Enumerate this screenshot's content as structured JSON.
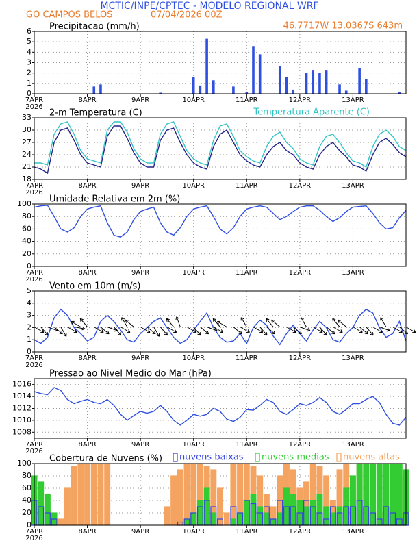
{
  "header": {
    "title": "MCTIC/INPE/CPTEC - MODELO REGIONAL WRF",
    "location": "GO CAMPOS BELOS",
    "datetime": "07/04/2026 00Z",
    "coords": "46.7717W 13.0367S 643m"
  },
  "chart_data": [
    {
      "type": "bar",
      "title": "Precipitacao (mm/h)",
      "color": "#2f4fe0",
      "grid": true,
      "x": [
        0,
        3,
        6,
        9,
        12,
        15,
        18,
        21,
        24,
        27,
        30,
        33,
        36,
        39,
        42,
        45,
        48,
        51,
        54,
        57,
        60,
        63,
        66,
        69,
        72,
        75,
        78,
        81,
        84,
        87,
        90,
        93,
        96,
        99,
        102,
        105,
        108,
        111,
        114,
        117,
        120,
        123,
        126,
        129,
        132,
        135,
        138,
        141,
        144,
        147,
        150,
        153,
        156,
        159,
        162,
        165,
        168
      ],
      "values": [
        0,
        0,
        0,
        0,
        0,
        0,
        0,
        0,
        0,
        0.7,
        0.9,
        0,
        0,
        0,
        0,
        0,
        0,
        0,
        0,
        0.1,
        0,
        0,
        0,
        0,
        1.6,
        0.8,
        5.3,
        1.3,
        0,
        0,
        0.7,
        0,
        0.2,
        4.6,
        3.8,
        0,
        0,
        2.7,
        1.6,
        0.4,
        0,
        2,
        2.3,
        2,
        2.3,
        0,
        0.9,
        0.3,
        0,
        2.5,
        1.4,
        0,
        0,
        0,
        0,
        0.2,
        0
      ],
      "xlim": [
        0,
        168
      ],
      "xticks": [
        {
          "value": 0,
          "label": "7APR"
        },
        {
          "value": 24,
          "label": "8APR"
        },
        {
          "value": 48,
          "label": "9APR"
        },
        {
          "value": 72,
          "label": "10APR"
        },
        {
          "value": 96,
          "label": "11APR"
        },
        {
          "value": 120,
          "label": "12APR"
        },
        {
          "value": 144,
          "label": "13APR"
        }
      ],
      "year": "2026",
      "ylim": [
        0,
        6
      ],
      "yticks": [
        0,
        1,
        2,
        3,
        4,
        5,
        6
      ]
    },
    {
      "type": "line",
      "grid": true,
      "x": [
        0,
        3,
        6,
        9,
        12,
        15,
        18,
        21,
        24,
        27,
        30,
        33,
        36,
        39,
        42,
        45,
        48,
        51,
        54,
        57,
        60,
        63,
        66,
        69,
        72,
        75,
        78,
        81,
        84,
        87,
        90,
        93,
        96,
        99,
        102,
        105,
        108,
        111,
        114,
        117,
        120,
        123,
        126,
        129,
        132,
        135,
        138,
        141,
        144,
        147,
        150,
        153,
        156,
        159,
        162,
        165,
        168
      ],
      "series": [
        {
          "name": "2-m Temperatura (C)",
          "color": "#22228a",
          "values": [
            21,
            20.5,
            19.5,
            27,
            30,
            30.5,
            27.5,
            24,
            22,
            21.5,
            21,
            28.5,
            31,
            31,
            28,
            24.5,
            22,
            21,
            21,
            27.5,
            30,
            30.5,
            27,
            24,
            22,
            21,
            20.5,
            26,
            29,
            30,
            27,
            24,
            22.5,
            21.5,
            21,
            24,
            26,
            27,
            25,
            24,
            22,
            21,
            20.5,
            24,
            26,
            27,
            25,
            23.5,
            21.5,
            21,
            20,
            24,
            27,
            28,
            26.5,
            24.5,
            23.5
          ]
        },
        {
          "name": "Temperatura Aparente (C)",
          "color": "#33c4c4",
          "values": [
            22,
            22,
            21.5,
            29,
            31.5,
            32,
            29,
            25,
            23,
            22.5,
            22,
            30,
            32,
            32,
            29.5,
            25.5,
            23,
            22,
            22,
            29,
            31.5,
            32,
            28.5,
            25,
            23,
            22,
            21.5,
            27.5,
            31,
            31.5,
            28.5,
            25,
            23.5,
            22.5,
            22,
            26,
            28.5,
            29.5,
            27,
            25.5,
            23,
            22,
            21.5,
            26,
            28.5,
            29,
            27,
            24.5,
            22.5,
            22,
            21,
            26,
            29,
            30,
            28.5,
            26,
            25
          ]
        }
      ],
      "xlim": [
        0,
        168
      ],
      "xticks": [
        {
          "value": 0,
          "label": "7APR"
        },
        {
          "value": 24,
          "label": "8APR"
        },
        {
          "value": 48,
          "label": "9APR"
        },
        {
          "value": 72,
          "label": "10APR"
        },
        {
          "value": 96,
          "label": "11APR"
        },
        {
          "value": 120,
          "label": "12APR"
        },
        {
          "value": 144,
          "label": "13APR"
        }
      ],
      "year": "2026",
      "ylim": [
        18,
        33
      ],
      "yticks": [
        18,
        21,
        24,
        27,
        30,
        33
      ]
    },
    {
      "type": "line",
      "title": "Umidade Relativa em 2m (%)",
      "color": "#2f4fe0",
      "grid": true,
      "x": [
        0,
        3,
        6,
        9,
        12,
        15,
        18,
        21,
        24,
        27,
        30,
        33,
        36,
        39,
        42,
        45,
        48,
        51,
        54,
        57,
        60,
        63,
        66,
        69,
        72,
        75,
        78,
        81,
        84,
        87,
        90,
        93,
        96,
        99,
        102,
        105,
        108,
        111,
        114,
        117,
        120,
        123,
        126,
        129,
        132,
        135,
        138,
        141,
        144,
        147,
        150,
        153,
        156,
        159,
        162,
        165,
        168
      ],
      "values": [
        95,
        97,
        98,
        80,
        60,
        55,
        62,
        80,
        92,
        95,
        97,
        70,
        50,
        47,
        55,
        75,
        88,
        92,
        95,
        70,
        55,
        50,
        62,
        80,
        92,
        95,
        97,
        80,
        60,
        52,
        62,
        80,
        92,
        95,
        97,
        95,
        85,
        75,
        80,
        88,
        95,
        97,
        97,
        90,
        80,
        72,
        78,
        88,
        95,
        96,
        97,
        85,
        70,
        60,
        62,
        78,
        90
      ],
      "xlim": [
        0,
        168
      ],
      "xticks": [
        {
          "value": 0,
          "label": "7APR"
        },
        {
          "value": 24,
          "label": "8APR"
        },
        {
          "value": 48,
          "label": "9APR"
        },
        {
          "value": 72,
          "label": "10APR"
        },
        {
          "value": 96,
          "label": "11APR"
        },
        {
          "value": 120,
          "label": "12APR"
        },
        {
          "value": 144,
          "label": "13APR"
        }
      ],
      "year": "2026",
      "ylim": [
        0,
        100
      ],
      "yticks": [
        0,
        20,
        40,
        60,
        80,
        100
      ]
    },
    {
      "type": "wind",
      "title": "Vento em 10m (m/s)",
      "color": "#2f4fe0",
      "arrow_color": "#000000",
      "grid": true,
      "x": [
        0,
        3,
        6,
        9,
        12,
        15,
        18,
        21,
        24,
        27,
        30,
        33,
        36,
        39,
        42,
        45,
        48,
        51,
        54,
        57,
        60,
        63,
        66,
        69,
        72,
        75,
        78,
        81,
        84,
        87,
        90,
        93,
        96,
        99,
        102,
        105,
        108,
        111,
        114,
        117,
        120,
        123,
        126,
        129,
        132,
        135,
        138,
        141,
        144,
        147,
        150,
        153,
        156,
        159,
        162,
        165,
        168
      ],
      "values": [
        1.0,
        0.7,
        1.2,
        2.8,
        3.5,
        3.0,
        2.0,
        1.5,
        0.9,
        1.2,
        2.5,
        3.0,
        2.5,
        1.8,
        1.0,
        0.8,
        1.5,
        2.0,
        2.5,
        2.8,
        2.0,
        1.2,
        0.7,
        1.0,
        1.8,
        2.5,
        3.2,
        2.0,
        1.2,
        0.8,
        0.9,
        1.5,
        0.7,
        2.0,
        2.6,
        2.2,
        1.3,
        0.6,
        1.5,
        2.2,
        1.5,
        0.9,
        1.8,
        2.5,
        2.0,
        1.0,
        0.8,
        1.5,
        2.0,
        3.0,
        3.5,
        3.2,
        2.0,
        1.2,
        1.5,
        2.5,
        0.9
      ],
      "wind_direction": [
        300,
        320,
        290,
        310,
        330,
        300,
        280,
        120,
        140,
        300,
        310,
        290,
        320,
        300,
        150,
        130,
        300,
        310,
        330,
        320,
        300,
        140,
        160,
        300,
        320,
        310,
        290,
        300,
        140,
        120,
        310,
        300,
        150,
        300,
        320,
        310,
        140,
        130,
        300,
        310,
        290,
        150,
        300,
        320,
        310,
        300,
        140,
        130,
        300,
        310,
        320,
        300,
        290,
        150,
        300,
        310,
        300
      ],
      "xlim": [
        0,
        168
      ],
      "xticks": [
        {
          "value": 0,
          "label": "7APR"
        },
        {
          "value": 24,
          "label": "8APR"
        },
        {
          "value": 48,
          "label": "9APR"
        },
        {
          "value": 72,
          "label": "10APR"
        },
        {
          "value": 96,
          "label": "11APR"
        },
        {
          "value": 120,
          "label": "12APR"
        },
        {
          "value": 144,
          "label": "13APR"
        }
      ],
      "year": "2026",
      "ylim": [
        0,
        5
      ],
      "yticks": [
        0,
        1,
        2,
        3,
        4,
        5
      ]
    },
    {
      "type": "line",
      "title": "Pressao ao Nivel Medio do Mar (hPa)",
      "color": "#2f4fe0",
      "grid": true,
      "x": [
        0,
        3,
        6,
        9,
        12,
        15,
        18,
        21,
        24,
        27,
        30,
        33,
        36,
        39,
        42,
        45,
        48,
        51,
        54,
        57,
        60,
        63,
        66,
        69,
        72,
        75,
        78,
        81,
        84,
        87,
        90,
        93,
        96,
        99,
        102,
        105,
        108,
        111,
        114,
        117,
        120,
        123,
        126,
        129,
        132,
        135,
        138,
        141,
        144,
        147,
        150,
        153,
        156,
        159,
        162,
        165,
        168
      ],
      "values": [
        1014.8,
        1014.5,
        1014.3,
        1015.5,
        1015.0,
        1013.5,
        1012.8,
        1013.2,
        1013.5,
        1013.0,
        1012.8,
        1013.5,
        1012.5,
        1011.0,
        1010.0,
        1010.8,
        1011.5,
        1011.2,
        1011.5,
        1012.5,
        1011.5,
        1010.0,
        1009.2,
        1010.0,
        1011.0,
        1010.7,
        1011.0,
        1012.0,
        1011.5,
        1010.2,
        1009.8,
        1010.5,
        1011.8,
        1011.7,
        1012.5,
        1013.5,
        1013.0,
        1011.5,
        1011.0,
        1011.8,
        1012.8,
        1012.5,
        1013.0,
        1013.8,
        1013.0,
        1011.5,
        1011.0,
        1011.8,
        1012.8,
        1012.8,
        1013.5,
        1014.0,
        1013.0,
        1011.0,
        1009.5,
        1009.2,
        1010.5
      ],
      "xlim": [
        0,
        168
      ],
      "xticks": [
        {
          "value": 0,
          "label": "7APR"
        },
        {
          "value": 24,
          "label": "8APR"
        },
        {
          "value": 48,
          "label": "9APR"
        },
        {
          "value": 72,
          "label": "10APR"
        },
        {
          "value": 96,
          "label": "11APR"
        },
        {
          "value": 120,
          "label": "12APR"
        },
        {
          "value": 144,
          "label": "13APR"
        }
      ],
      "year": "2026",
      "ylim": [
        1007,
        1017
      ],
      "yticks": [
        1008,
        1010,
        1012,
        1014,
        1016
      ]
    },
    {
      "type": "bar",
      "title": "Cobertura de Nuvens (%)",
      "grid": true,
      "x": [
        0,
        3,
        6,
        9,
        12,
        15,
        18,
        21,
        24,
        27,
        30,
        33,
        36,
        39,
        42,
        45,
        48,
        51,
        54,
        57,
        60,
        63,
        66,
        69,
        72,
        75,
        78,
        81,
        84,
        87,
        90,
        93,
        96,
        99,
        102,
        105,
        108,
        111,
        114,
        117,
        120,
        123,
        126,
        129,
        132,
        135,
        138,
        141,
        144,
        147,
        150,
        153,
        156,
        159,
        162,
        165,
        168
      ],
      "series": [
        {
          "name": "nuvens baixas",
          "color": "#3344dd",
          "filled": false,
          "values": [
            40,
            30,
            20,
            10,
            0,
            0,
            0,
            0,
            0,
            0,
            0,
            0,
            0,
            0,
            0,
            0,
            0,
            0,
            0,
            0,
            0,
            0,
            5,
            10,
            20,
            30,
            40,
            30,
            10,
            0,
            30,
            20,
            40,
            35,
            20,
            30,
            10,
            40,
            30,
            30,
            20,
            40,
            30,
            20,
            10,
            30,
            20,
            30,
            30,
            40,
            30,
            20,
            10,
            30,
            20,
            10,
            20
          ]
        },
        {
          "name": "nuvens medias",
          "color": "#33cc33",
          "filled": true,
          "values": [
            80,
            70,
            50,
            20,
            0,
            0,
            0,
            0,
            0,
            0,
            0,
            0,
            0,
            0,
            0,
            0,
            0,
            0,
            0,
            0,
            0,
            0,
            0,
            10,
            20,
            40,
            60,
            20,
            0,
            0,
            10,
            20,
            40,
            50,
            30,
            20,
            10,
            20,
            60,
            50,
            40,
            30,
            40,
            50,
            30,
            20,
            30,
            60,
            80,
            100,
            100,
            100,
            100,
            100,
            100,
            100,
            90
          ]
        },
        {
          "name": "nuvens altas",
          "color": "#f4a460",
          "filled": true,
          "values": [
            0,
            0,
            0,
            0,
            10,
            60,
            95,
            100,
            100,
            100,
            100,
            100,
            0,
            0,
            0,
            0,
            0,
            0,
            0,
            0,
            30,
            80,
            90,
            100,
            100,
            100,
            95,
            90,
            60,
            20,
            100,
            100,
            100,
            95,
            80,
            50,
            30,
            80,
            100,
            90,
            60,
            70,
            100,
            95,
            80,
            40,
            90,
            100,
            60,
            100,
            100,
            90,
            20,
            30,
            60,
            80,
            40
          ]
        }
      ],
      "xlim": [
        0,
        168
      ],
      "xticks": [
        {
          "value": 0,
          "label": "7APR"
        },
        {
          "value": 24,
          "label": "8APR"
        },
        {
          "value": 48,
          "label": "9APR"
        },
        {
          "value": 72,
          "label": "10APR"
        },
        {
          "value": 96,
          "label": "11APR"
        },
        {
          "value": 120,
          "label": "12APR"
        },
        {
          "value": 144,
          "label": "13APR"
        }
      ],
      "year": "2026",
      "ylim": [
        0,
        100
      ],
      "yticks": [
        0,
        20,
        40,
        60,
        80,
        100
      ]
    }
  ]
}
